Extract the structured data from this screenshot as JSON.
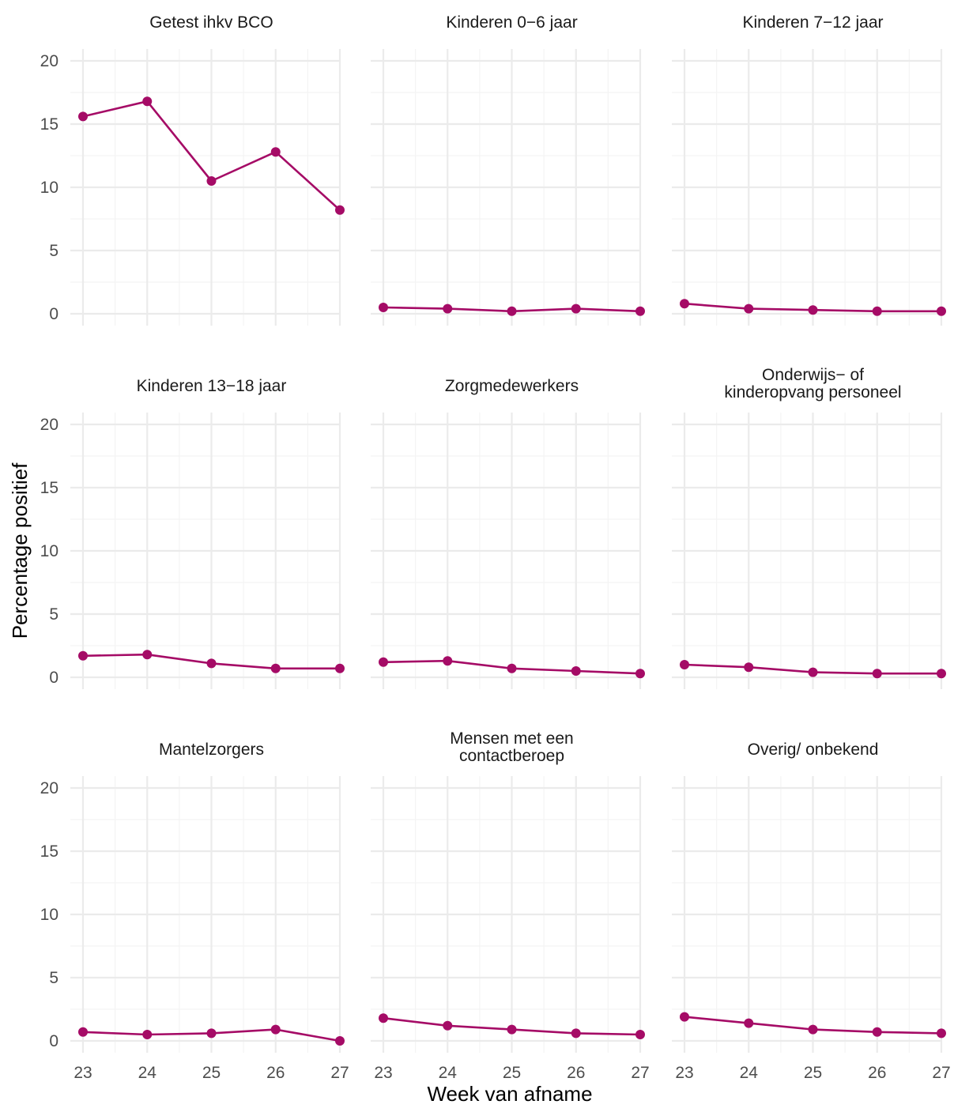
{
  "chart_data": {
    "type": "line",
    "xlabel": "Week van afname",
    "ylabel": "Percentage positief",
    "x": [
      23,
      24,
      25,
      26,
      27
    ],
    "xlim": [
      23,
      27
    ],
    "ylim": [
      0,
      20
    ],
    "yticks": [
      0,
      5,
      10,
      15,
      20
    ],
    "grid": true,
    "colors": {
      "series": "#A50B66",
      "grid_major": "#EBEBEB",
      "grid_minor": "#F4F4F4"
    },
    "panels": [
      {
        "title": [
          "Getest ihkv BCO"
        ],
        "values": [
          15.6,
          16.8,
          10.5,
          12.8,
          8.2
        ]
      },
      {
        "title": [
          "Kinderen 0−6 jaar"
        ],
        "values": [
          0.5,
          0.4,
          0.2,
          0.4,
          0.2
        ]
      },
      {
        "title": [
          "Kinderen 7−12 jaar"
        ],
        "values": [
          0.8,
          0.4,
          0.3,
          0.2,
          0.2
        ]
      },
      {
        "title": [
          "Kinderen 13−18 jaar"
        ],
        "values": [
          1.7,
          1.8,
          1.1,
          0.7,
          0.7
        ]
      },
      {
        "title": [
          "Zorgmedewerkers"
        ],
        "values": [
          1.2,
          1.3,
          0.7,
          0.5,
          0.3
        ]
      },
      {
        "title": [
          "Onderwijs− of",
          "kinderopvang personeel"
        ],
        "values": [
          1.0,
          0.8,
          0.4,
          0.3,
          0.3
        ]
      },
      {
        "title": [
          "Mantelzorgers"
        ],
        "values": [
          0.7,
          0.5,
          0.6,
          0.9,
          0.0
        ]
      },
      {
        "title": [
          "Mensen met een",
          "contactberoep"
        ],
        "values": [
          1.8,
          1.2,
          0.9,
          0.6,
          0.5
        ]
      },
      {
        "title": [
          "Overig/ onbekend"
        ],
        "values": [
          1.9,
          1.4,
          0.9,
          0.7,
          0.6
        ]
      }
    ]
  }
}
